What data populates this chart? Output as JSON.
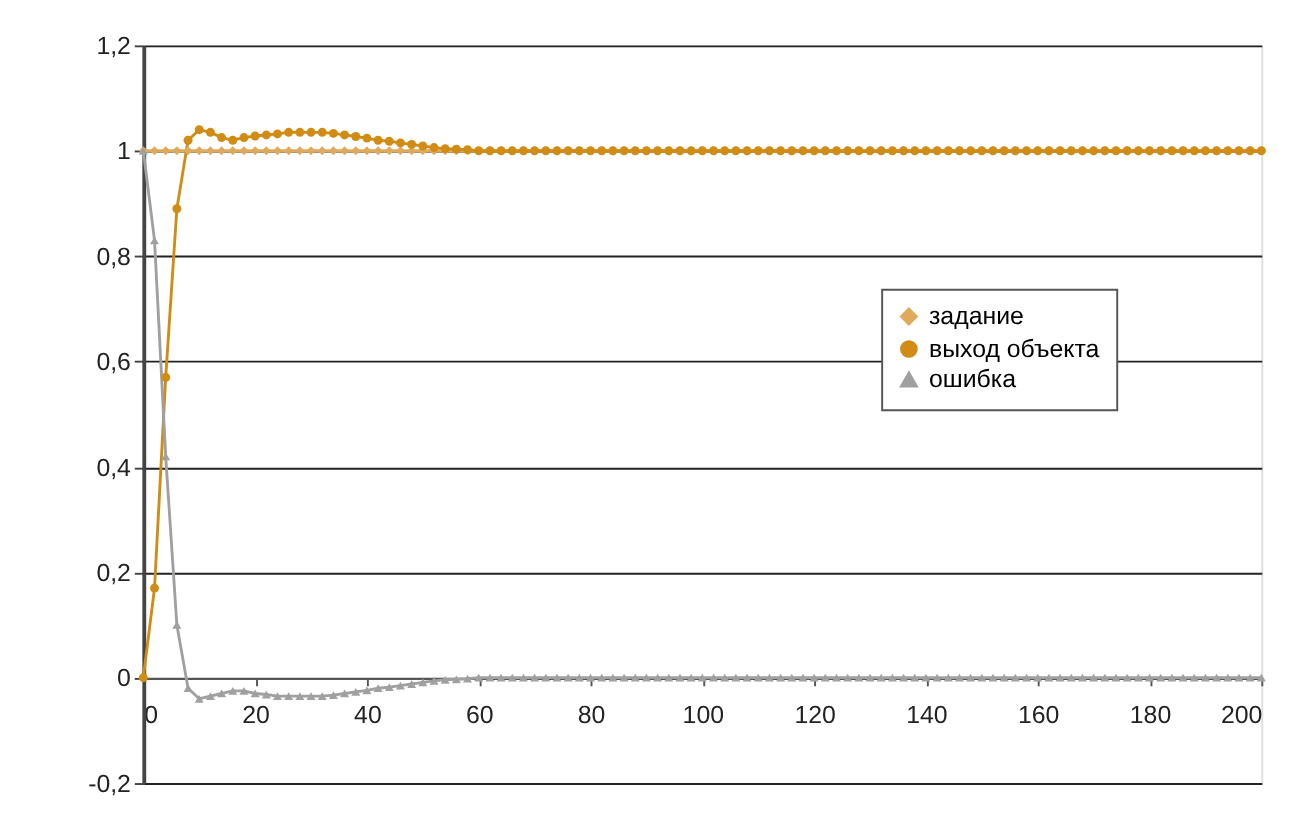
{
  "chart_data": {
    "type": "line",
    "x": [
      0,
      2,
      4,
      6,
      8,
      10,
      12,
      14,
      16,
      18,
      20,
      22,
      24,
      26,
      28,
      30,
      32,
      34,
      36,
      38,
      40,
      42,
      44,
      46,
      48,
      50,
      52,
      54,
      56,
      58,
      60,
      62,
      64,
      66,
      68,
      70,
      72,
      74,
      76,
      78,
      80,
      82,
      84,
      86,
      88,
      90,
      92,
      94,
      96,
      98,
      100,
      102,
      104,
      106,
      108,
      110,
      112,
      114,
      116,
      118,
      120,
      122,
      124,
      126,
      128,
      130,
      132,
      134,
      136,
      138,
      140,
      142,
      144,
      146,
      148,
      150,
      152,
      154,
      156,
      158,
      160,
      162,
      164,
      166,
      168,
      170,
      172,
      174,
      176,
      178,
      180,
      182,
      184,
      186,
      188,
      190,
      192,
      194,
      196,
      198,
      200
    ],
    "series": [
      {
        "name": "задание",
        "color": "#e0aa5c",
        "marker": "diamond",
        "values": [
          1,
          1,
          1,
          1,
          1,
          1,
          1,
          1,
          1,
          1,
          1,
          1,
          1,
          1,
          1,
          1,
          1,
          1,
          1,
          1,
          1,
          1,
          1,
          1,
          1,
          1,
          1,
          1,
          1,
          1,
          1,
          1,
          1,
          1,
          1,
          1,
          1,
          1,
          1,
          1,
          1,
          1,
          1,
          1,
          1,
          1,
          1,
          1,
          1,
          1,
          1,
          1,
          1,
          1,
          1,
          1,
          1,
          1,
          1,
          1,
          1,
          1,
          1,
          1,
          1,
          1,
          1,
          1,
          1,
          1,
          1,
          1,
          1,
          1,
          1,
          1,
          1,
          1,
          1,
          1,
          1,
          1,
          1,
          1,
          1,
          1,
          1,
          1,
          1,
          1,
          1,
          1,
          1,
          1,
          1,
          1,
          1,
          1,
          1,
          1,
          1
        ]
      },
      {
        "name": "выход объекта",
        "color": "#d08c14",
        "marker": "circle",
        "values": [
          0,
          0.17,
          0.57,
          0.89,
          1.02,
          1.04,
          1.035,
          1.025,
          1.02,
          1.025,
          1.028,
          1.03,
          1.032,
          1.035,
          1.035,
          1.035,
          1.035,
          1.033,
          1.03,
          1.027,
          1.024,
          1.02,
          1.018,
          1.015,
          1.012,
          1.009,
          1.006,
          1.004,
          1.003,
          1.002,
          1,
          1,
          1,
          1,
          1,
          1,
          1,
          1,
          1,
          1,
          1,
          1,
          1,
          1,
          1,
          1,
          1,
          1,
          1,
          1,
          1,
          1,
          1,
          1,
          1,
          1,
          1,
          1,
          1,
          1,
          1,
          1,
          1,
          1,
          1,
          1,
          1,
          1,
          1,
          1,
          1,
          1,
          1,
          1,
          1,
          1,
          1,
          1,
          1,
          1,
          1,
          1,
          1,
          1,
          1,
          1,
          1,
          1,
          1,
          1,
          1,
          1,
          1,
          1,
          1,
          1,
          1,
          1,
          1,
          1,
          1
        ]
      },
      {
        "name": "ошибка",
        "color": "#a0a0a0",
        "marker": "triangle",
        "values": [
          1,
          0.83,
          0.42,
          0.1,
          -0.02,
          -0.04,
          -0.035,
          -0.03,
          -0.025,
          -0.025,
          -0.03,
          -0.032,
          -0.035,
          -0.035,
          -0.035,
          -0.035,
          -0.035,
          -0.033,
          -0.03,
          -0.027,
          -0.024,
          -0.02,
          -0.018,
          -0.015,
          -0.012,
          -0.009,
          -0.006,
          -0.004,
          -0.003,
          -0.002,
          0,
          0,
          0,
          0,
          0,
          0,
          0,
          0,
          0,
          0,
          0,
          0,
          0,
          0,
          0,
          0,
          0,
          0,
          0,
          0,
          0,
          0,
          0,
          0,
          0,
          0,
          0,
          0,
          0,
          0,
          0,
          0,
          0,
          0,
          0,
          0,
          0,
          0,
          0,
          0,
          0,
          0,
          0,
          0,
          0,
          0,
          0,
          0,
          0,
          0,
          0,
          0,
          0,
          0,
          0,
          0,
          0,
          0,
          0,
          0,
          0,
          0,
          0,
          0,
          0,
          0,
          0,
          0,
          0,
          0,
          0
        ]
      }
    ],
    "xlim": [
      0,
      200
    ],
    "xticks": [
      0,
      20,
      40,
      60,
      80,
      100,
      120,
      140,
      160,
      180,
      200
    ],
    "ylim": [
      -0.2,
      1.2
    ],
    "yticks": [
      {
        "value": -0.2,
        "label": "-0,2"
      },
      0,
      {
        "value": 0.2,
        "label": "0,2"
      },
      {
        "value": 0.4,
        "label": "0,4"
      },
      {
        "value": 0.6,
        "label": "0,6"
      },
      {
        "value": 0.8,
        "label": "0,8"
      },
      1,
      {
        "value": 1.2,
        "label": "1,2"
      }
    ],
    "grid": "y",
    "legend": "right",
    "line_style": "solid"
  }
}
